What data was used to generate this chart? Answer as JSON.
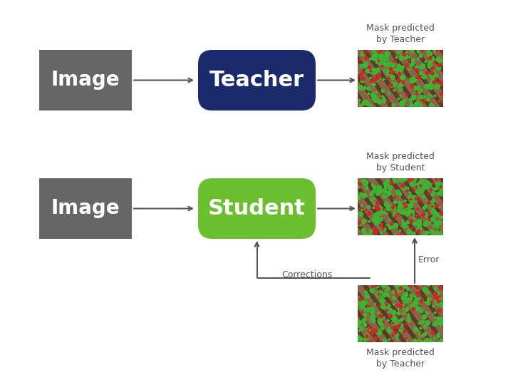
{
  "background_color": "#ffffff",
  "image_box_color": "#666666",
  "teacher_box_color": "#1a2a6c",
  "student_box_color": "#6abf2e",
  "image_label": "Image",
  "teacher_label": "Teacher",
  "student_label": "Student",
  "label_color": "#ffffff",
  "annotation_color": "#888888",
  "arrow_color": "#555555",
  "mask_teacher_top_label": "Mask predicted\nby Teacher",
  "mask_student_label": "Mask predicted\nby Student",
  "mask_teacher_bottom_label": "Mask predicted\nby Teacher",
  "corrections_label": "Corrections",
  "error_label": "Error",
  "figsize": [
    7.2,
    5.4
  ],
  "dpi": 100
}
